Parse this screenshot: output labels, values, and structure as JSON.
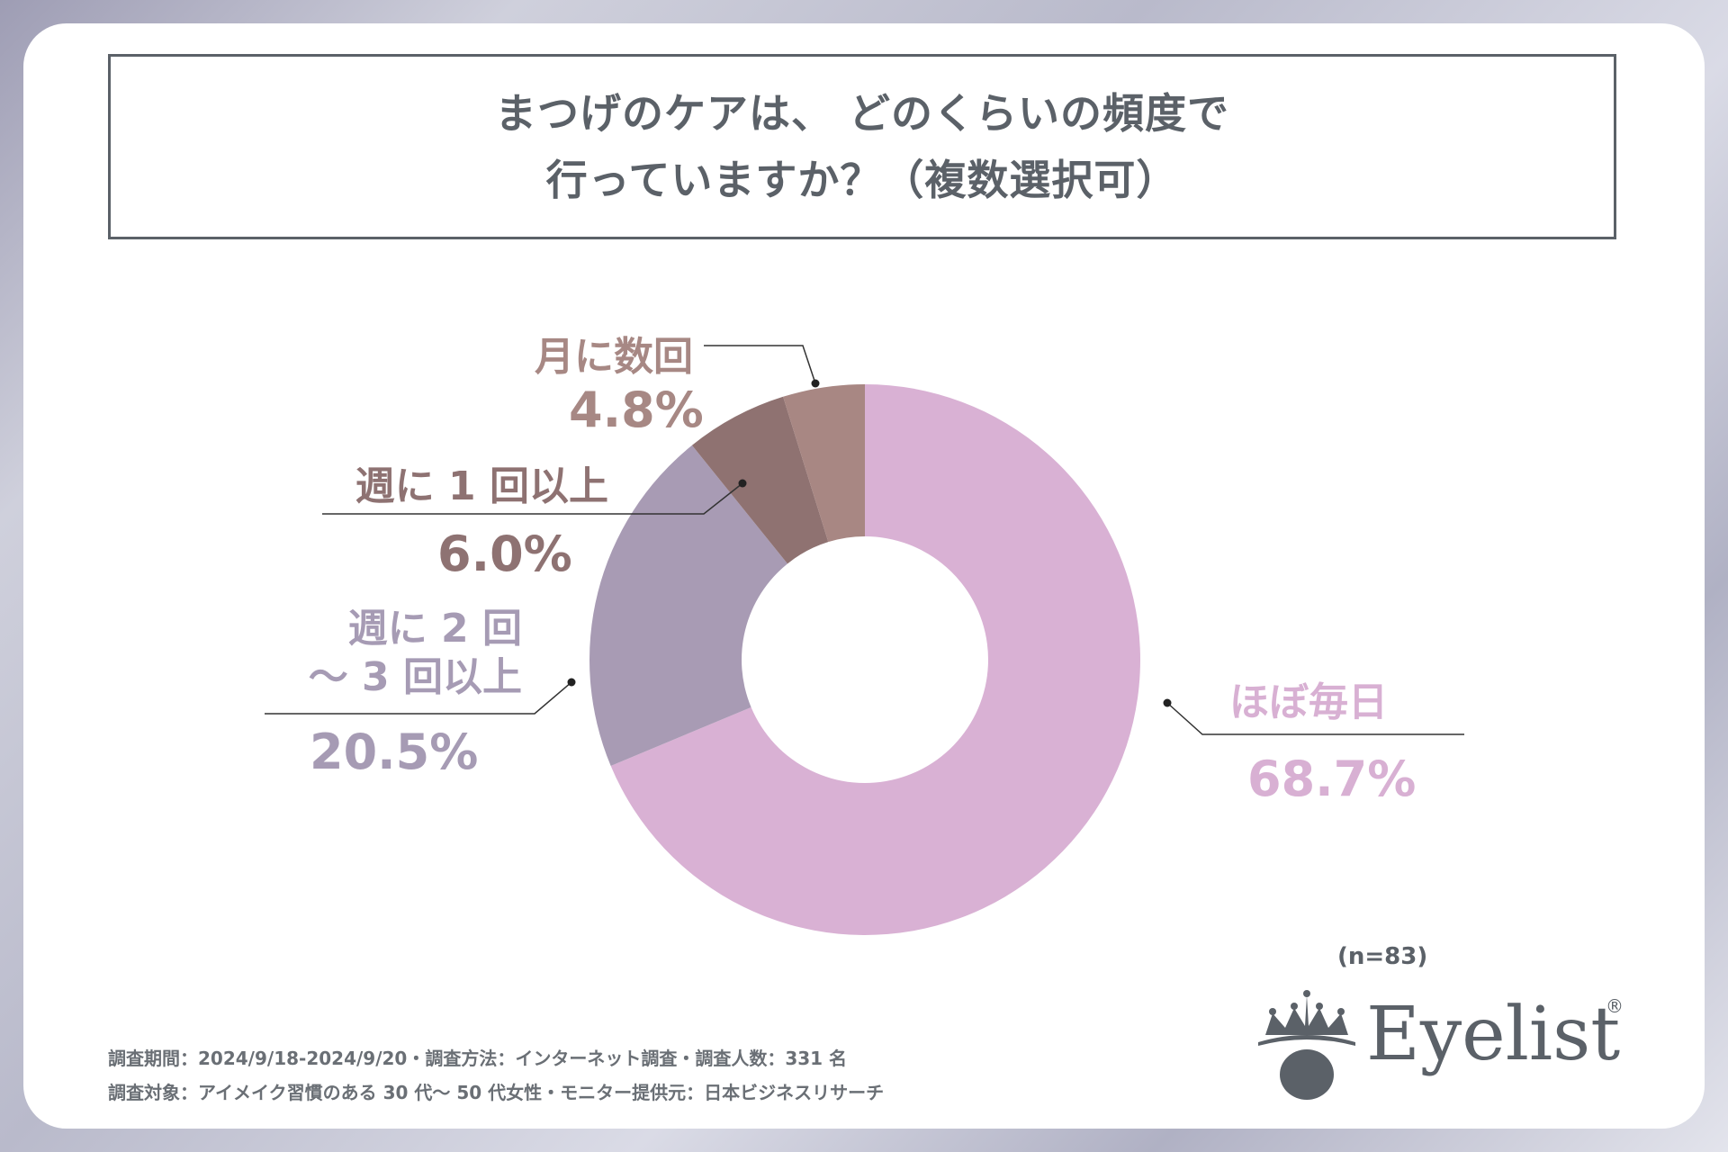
{
  "title": {
    "line1": "まつげのケアは、 どのくらいの頻度で",
    "line2": "行っていますか？（複数選択可）"
  },
  "chart_data": {
    "type": "pie",
    "variant": "donut",
    "title": "まつげのケアは、 どのくらいの頻度で行っていますか？（複数選択可）",
    "unit": "%",
    "sample": "(n=83)",
    "slices": [
      {
        "label": "ほぼ毎日",
        "value": 68.7,
        "display": "68.7%",
        "color": "#d9b1d4"
      },
      {
        "label_lines": [
          "週に 2 回",
          "～ 3 回以上"
        ],
        "label": "週に 2 回～ 3 回以上",
        "value": 20.5,
        "display": "20.5%",
        "color": "#a89bb4"
      },
      {
        "label": "週に 1 回以上",
        "value": 6.0,
        "display": "6.0%",
        "color": "#8f7271"
      },
      {
        "label": "月に数回",
        "value": 4.8,
        "display": "4.8%",
        "color": "#a88783"
      }
    ]
  },
  "footnotes": {
    "line1": "調査期間：2024/9/18-2024/9/20・調査方法：インターネット調査・調査人数：331 名",
    "line2": "調査対象：アイメイク習慣のある 30 代～ 50 代女性・モニター提供元：日本ビジネスリサーチ"
  },
  "brand": {
    "name": "Eyelist",
    "reg": "®"
  },
  "colors": {
    "text": "#5b6168",
    "leader": "#333333"
  }
}
